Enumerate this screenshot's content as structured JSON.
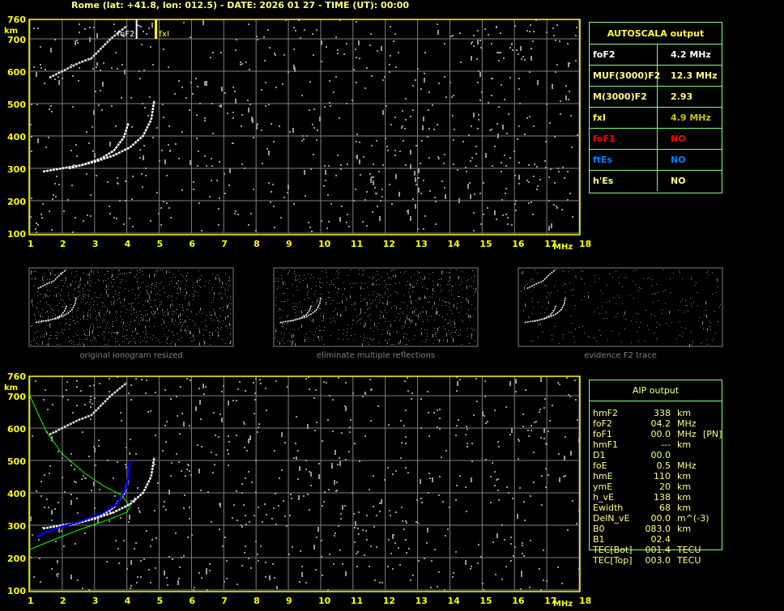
{
  "header": {
    "title": "Rome (lat: +41.8, lon: 012.5) - DATE: 2026 01 27 - TIME (UT): 00:00"
  },
  "colors": {
    "axis": "#ffff00",
    "grid": "#808080",
    "table_border": "#80ff80",
    "trace": "#ffffff",
    "model_profile": "#00ff00",
    "true_height": "#0000ff"
  },
  "autoscala": {
    "title": "AUTOSCALA output",
    "rows": [
      {
        "label": "foF2",
        "value": "4.2 MHz",
        "color": "#ffffff"
      },
      {
        "label": "MUF(3000)F2",
        "value": "12.3 MHz",
        "color": "#ffff80"
      },
      {
        "label": "M(3000)F2",
        "value": "2.93",
        "color": "#ffff80"
      },
      {
        "label": "fxI",
        "value": "4.9 MHz",
        "color": "#ffff40",
        "value_color": "#c8c800"
      },
      {
        "label": "foF1",
        "value": "NO",
        "color": "#ff0000"
      },
      {
        "label": "ftEs",
        "value": "NO",
        "color": "#0080ff"
      },
      {
        "label": "h'Es",
        "value": "NO",
        "color": "#ffff80"
      }
    ]
  },
  "aip": {
    "title": "AIP output",
    "rows": [
      [
        "hmF2",
        "338",
        "km",
        ""
      ],
      [
        "foF2",
        "04.2",
        "MHz",
        ""
      ],
      [
        "foF1",
        "00.0",
        "MHz",
        "[PN]"
      ],
      [
        "hmF1",
        "---",
        "km",
        ""
      ],
      [
        "D1",
        "00.0",
        "",
        ""
      ],
      [
        "foE",
        "0.5",
        "MHz",
        ""
      ],
      [
        "hmE",
        "110",
        "km",
        ""
      ],
      [
        "ymE",
        "20",
        "km",
        ""
      ],
      [
        "h_vE",
        "138",
        "km",
        ""
      ],
      [
        "Ewidth",
        "68",
        "km",
        ""
      ],
      [
        "DelN_vE",
        "00.0",
        "m^(-3)",
        ""
      ],
      [
        "B0",
        "083.0",
        "km",
        ""
      ],
      [
        "B1",
        "02.4",
        "",
        ""
      ],
      [
        "TEC[Bot]",
        "001.4",
        "TECU",
        ""
      ],
      [
        "TEC[Top]",
        "003.0",
        "TECU",
        ""
      ]
    ]
  },
  "thumbnails": [
    "original ionogram resized",
    "eliminate multiple reflections",
    "evidence F2 trace"
  ],
  "chart_data": [
    {
      "type": "scatter",
      "title": "",
      "xlabel": "MHz",
      "ylabel": "km",
      "xlim": [
        1,
        18
      ],
      "ylim": [
        100,
        760
      ],
      "xticks": [
        "1",
        "2",
        "3",
        "4",
        "5",
        "6",
        "7",
        "8",
        "9",
        "10",
        "11",
        "12",
        "13",
        "14",
        "15",
        "16",
        "17",
        "18"
      ],
      "yticks": [
        "100",
        "200",
        "300",
        "400",
        "500",
        "600",
        "700",
        "760"
      ],
      "grid": true,
      "markers": [
        {
          "label": "foF2",
          "x": 4.2
        },
        {
          "label": "fxI",
          "x": 4.9
        }
      ],
      "series": [
        {
          "kind": "o-trace",
          "points": [
            [
              1.4,
              290
            ],
            [
              2,
              300
            ],
            [
              2.6,
              310
            ],
            [
              3.2,
              330
            ],
            [
              3.6,
              355
            ],
            [
              3.9,
              395
            ],
            [
              4.05,
              440
            ]
          ]
        },
        {
          "kind": "x-trace",
          "points": [
            [
              2.2,
              300
            ],
            [
              3,
              320
            ],
            [
              3.6,
              340
            ],
            [
              4.1,
              365
            ],
            [
              4.5,
              400
            ],
            [
              4.75,
              450
            ],
            [
              4.85,
              510
            ]
          ]
        },
        {
          "kind": "multiple-reflection",
          "points": [
            [
              1.6,
              580
            ],
            [
              2,
              600
            ],
            [
              2.5,
              625
            ],
            [
              2.9,
              640
            ],
            [
              3.5,
              700
            ],
            [
              4.0,
              740
            ]
          ]
        }
      ]
    },
    {
      "type": "scatter",
      "title": "",
      "xlabel": "MHz",
      "ylabel": "km",
      "xlim": [
        1,
        18
      ],
      "ylim": [
        100,
        760
      ],
      "xticks": [
        "1",
        "2",
        "3",
        "4",
        "5",
        "6",
        "7",
        "8",
        "9",
        "10",
        "11",
        "12",
        "13",
        "14",
        "15",
        "16",
        "17",
        "18"
      ],
      "yticks": [
        "100",
        "200",
        "300",
        "400",
        "500",
        "600",
        "700",
        "760"
      ],
      "grid": true,
      "series": [
        {
          "kind": "o-trace",
          "points": [
            [
              1.4,
              290
            ],
            [
              2,
              300
            ],
            [
              2.6,
              310
            ],
            [
              3.2,
              330
            ],
            [
              3.6,
              355
            ],
            [
              3.9,
              395
            ],
            [
              4.05,
              440
            ]
          ]
        },
        {
          "kind": "x-trace",
          "points": [
            [
              2.2,
              300
            ],
            [
              3,
              320
            ],
            [
              3.6,
              340
            ],
            [
              4.1,
              365
            ],
            [
              4.5,
              400
            ],
            [
              4.75,
              450
            ],
            [
              4.85,
              510
            ]
          ]
        },
        {
          "kind": "multiple-reflection",
          "points": [
            [
              1.6,
              580
            ],
            [
              2,
              600
            ],
            [
              2.5,
              625
            ],
            [
              2.9,
              640
            ],
            [
              3.5,
              700
            ],
            [
              4.0,
              740
            ]
          ]
        },
        {
          "kind": "model-profile",
          "points": [
            [
              1,
              700
            ],
            [
              1.5,
              590
            ],
            [
              2,
              520
            ],
            [
              2.7,
              460
            ],
            [
              3.3,
              420
            ],
            [
              3.8,
              395
            ],
            [
              4.1,
              360
            ],
            [
              4.0,
              340
            ],
            [
              3.5,
              320
            ],
            [
              2.5,
              285
            ],
            [
              1.6,
              250
            ],
            [
              1,
              225
            ]
          ]
        },
        {
          "kind": "true-height",
          "points": [
            [
              1.2,
              265
            ],
            [
              1.8,
              290
            ],
            [
              2.5,
              310
            ],
            [
              3.2,
              335
            ],
            [
              3.7,
              365
            ],
            [
              4.0,
              420
            ],
            [
              4.1,
              500
            ]
          ]
        }
      ]
    }
  ]
}
